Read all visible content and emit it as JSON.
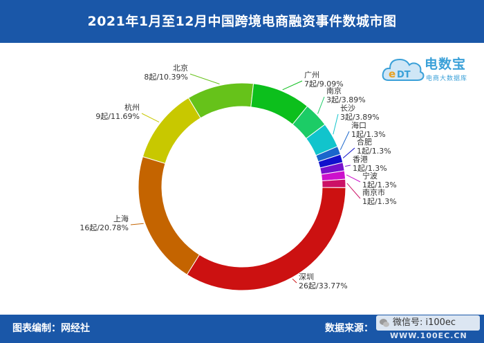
{
  "header": {
    "title": "2021年1月至12月中国跨境电商融资事件数城市图"
  },
  "logo": {
    "brand": "电数宝",
    "sub": "电商大数据库",
    "icon": "edt-cloud-logo"
  },
  "footer": {
    "left": "图表编制：网经社",
    "right": "数据来源：",
    "wechat": "微信号: i100ec",
    "watermark": "WWW.100EC.CN"
  },
  "colors": {
    "bar": "#1a57a8"
  },
  "chart_data": {
    "type": "pie",
    "style": "donut",
    "title": "2021年1月至12月中国跨境电商融资事件数城市图",
    "slices": [
      {
        "name": "深圳",
        "value": 26,
        "label": "26起/33.77%",
        "color": "#cc1111"
      },
      {
        "name": "上海",
        "value": 16,
        "label": "16起/20.78%",
        "color": "#c46400"
      },
      {
        "name": "杭州",
        "value": 9,
        "label": "9起/11.69%",
        "color": "#c8c800"
      },
      {
        "name": "北京",
        "value": 8,
        "label": "8起/10.39%",
        "color": "#66c21a"
      },
      {
        "name": "广州",
        "value": 7,
        "label": "7起/9.09%",
        "color": "#0cbf1c"
      },
      {
        "name": "南京",
        "value": 3,
        "label": "3起/3.89%",
        "color": "#1ccc66"
      },
      {
        "name": "长沙",
        "value": 3,
        "label": "3起/3.89%",
        "color": "#11c4cc"
      },
      {
        "name": "海口",
        "value": 1,
        "label": "1起/1.3%",
        "color": "#1a66cc"
      },
      {
        "name": "合肥",
        "value": 1,
        "label": "1起/1.3%",
        "color": "#1111cc"
      },
      {
        "name": "香港",
        "value": 1,
        "label": "1起/1.3%",
        "color": "#7711cc"
      },
      {
        "name": "宁波",
        "value": 1,
        "label": "1起/1.3%",
        "color": "#cc11cc"
      },
      {
        "name": "南京市",
        "value": 1,
        "label": "1起/1.3%",
        "color": "#cc1166"
      }
    ]
  }
}
